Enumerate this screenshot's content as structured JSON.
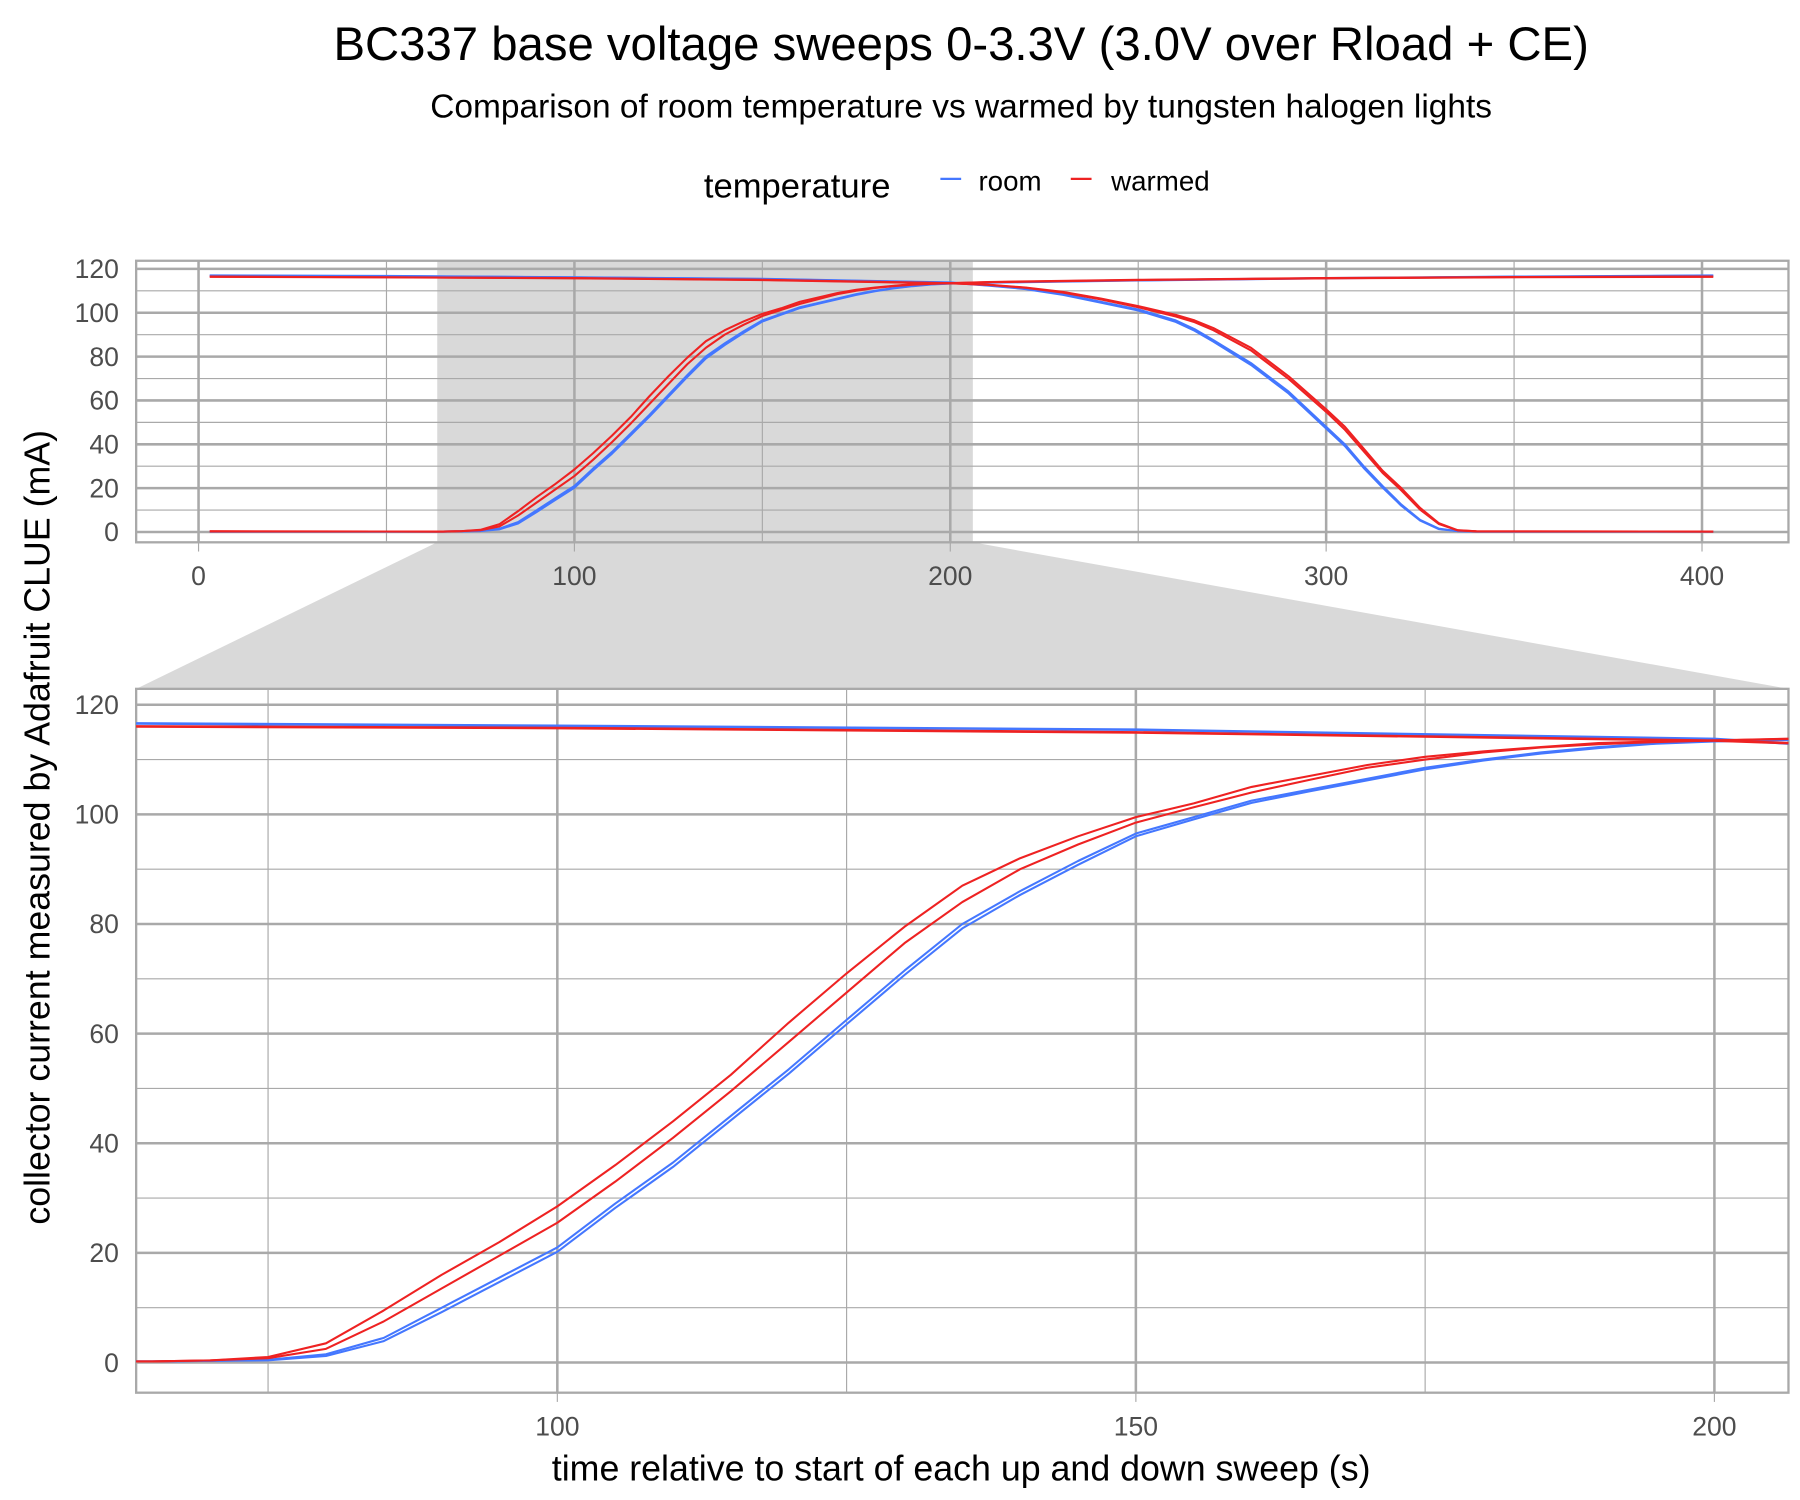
{
  "chart_data": {
    "type": "line",
    "title": "BC337 base voltage sweeps 0-3.3V (3.0V over Rload + CE)",
    "subtitle": "Comparison of room temperature vs warmed by tungsten halogen lights",
    "xlabel": "time relative to start of each up and down sweep (s)",
    "ylabel": "collector current measured by Adafruit CLUE (mA)",
    "legend": {
      "title": "temperature",
      "position": "top",
      "entries": [
        "room",
        "warmed"
      ]
    },
    "colors": {
      "room": "#4477ff",
      "warmed": "#ee2222",
      "zoom_shade": "#d9d9d9",
      "grid": "#a9a9a9"
    },
    "grid": true,
    "panels": [
      {
        "name": "overview",
        "xlim": [
          -16.6,
          423
        ],
        "ylim": [
          -4.7,
          123.7
        ],
        "xticks": [
          0,
          100,
          200,
          300,
          400
        ],
        "yticks": [
          0,
          20,
          40,
          60,
          80,
          100,
          120
        ],
        "zoom_region_x": [
          63.5,
          206
        ]
      },
      {
        "name": "zoomed",
        "xlim": [
          63.6,
          206.4
        ],
        "ylim": [
          -5.5,
          122.9
        ],
        "xticks": [
          100,
          150,
          200
        ],
        "yticks": [
          0,
          20,
          40,
          60,
          80,
          100,
          120
        ]
      }
    ],
    "series": [
      {
        "name": "room",
        "runs": [
          {
            "rising": [
              [
                3,
                0.2
              ],
              [
                65,
                0.2
              ],
              [
                70,
                0.3
              ],
              [
                75,
                0.5
              ],
              [
                80,
                1.5
              ],
              [
                85,
                4.5
              ],
              [
                90,
                10
              ],
              [
                95,
                15.5
              ],
              [
                100,
                21
              ],
              [
                105,
                29
              ],
              [
                110,
                36.5
              ],
              [
                115,
                45
              ],
              [
                120,
                53.5
              ],
              [
                125,
                62.5
              ],
              [
                130,
                71.5
              ],
              [
                135,
                80
              ],
              [
                140,
                86
              ],
              [
                145,
                91.5
              ],
              [
                150,
                96.5
              ],
              [
                155,
                99.5
              ],
              [
                160,
                102.5
              ],
              [
                165,
                104.5
              ],
              [
                170,
                106.5
              ],
              [
                175,
                108.5
              ],
              [
                180,
                110
              ],
              [
                185,
                111.3
              ],
              [
                190,
                112.3
              ],
              [
                195,
                113
              ],
              [
                200,
                113.4
              ],
              [
                210,
                113.8
              ],
              [
                250,
                114.8
              ],
              [
                300,
                115.8
              ],
              [
                350,
                116.5
              ],
              [
                403,
                117
              ]
            ],
            "falling": [
              [
                3,
                117
              ],
              [
                50,
                116.8
              ],
              [
                100,
                116.2
              ],
              [
                150,
                115.5
              ],
              [
                200,
                113.8
              ],
              [
                210,
                112.5
              ],
              [
                220,
                111
              ],
              [
                230,
                108.5
              ],
              [
                240,
                105
              ],
              [
                250,
                101.5
              ],
              [
                260,
                96.5
              ],
              [
                265,
                92.5
              ],
              [
                270,
                87.5
              ],
              [
                280,
                77
              ],
              [
                290,
                64
              ],
              [
                300,
                48
              ],
              [
                305,
                40
              ],
              [
                310,
                30
              ],
              [
                315,
                21
              ],
              [
                320,
                12.5
              ],
              [
                325,
                5.5
              ],
              [
                330,
                1.5
              ],
              [
                335,
                0.4
              ],
              [
                340,
                0.2
              ],
              [
                403,
                0.2
              ]
            ]
          },
          {
            "rising": [
              [
                3,
                0.2
              ],
              [
                65,
                0.2
              ],
              [
                70,
                0.3
              ],
              [
                75,
                0.4
              ],
              [
                80,
                1.2
              ],
              [
                85,
                3.9
              ],
              [
                90,
                9.2
              ],
              [
                95,
                14.7
              ],
              [
                100,
                20.2
              ],
              [
                105,
                28.2
              ],
              [
                110,
                35.7
              ],
              [
                115,
                44.2
              ],
              [
                120,
                52.7
              ],
              [
                125,
                61.7
              ],
              [
                130,
                70.7
              ],
              [
                135,
                79.2
              ],
              [
                140,
                85.3
              ],
              [
                145,
                90.8
              ],
              [
                150,
                96
              ],
              [
                155,
                99.1
              ],
              [
                160,
                102.1
              ],
              [
                165,
                104.2
              ],
              [
                170,
                106.2
              ],
              [
                175,
                108.2
              ],
              [
                180,
                109.8
              ],
              [
                185,
                111.1
              ],
              [
                190,
                112.1
              ],
              [
                195,
                112.9
              ],
              [
                200,
                113.3
              ],
              [
                210,
                113.7
              ],
              [
                250,
                114.7
              ],
              [
                300,
                115.7
              ],
              [
                350,
                116.4
              ],
              [
                403,
                116.9
              ]
            ],
            "falling": [
              [
                3,
                116.9
              ],
              [
                50,
                116.7
              ],
              [
                100,
                116.1
              ],
              [
                150,
                115.4
              ],
              [
                200,
                113.7
              ],
              [
                210,
                112.4
              ],
              [
                220,
                110.8
              ],
              [
                230,
                108.2
              ],
              [
                240,
                104.6
              ],
              [
                250,
                101
              ],
              [
                260,
                95.8
              ],
              [
                265,
                91.8
              ],
              [
                270,
                86.8
              ],
              [
                280,
                76.2
              ],
              [
                290,
                63.2
              ],
              [
                300,
                47.2
              ],
              [
                305,
                39.2
              ],
              [
                310,
                29.2
              ],
              [
                315,
                20.3
              ],
              [
                320,
                12
              ],
              [
                325,
                5.2
              ],
              [
                330,
                1.3
              ],
              [
                335,
                0.4
              ],
              [
                340,
                0.2
              ],
              [
                403,
                0.2
              ]
            ]
          }
        ]
      },
      {
        "name": "warmed",
        "runs": [
          {
            "rising": [
              [
                3,
                0.3
              ],
              [
                65,
                0.2
              ],
              [
                70,
                0.4
              ],
              [
                75,
                1
              ],
              [
                80,
                3.5
              ],
              [
                85,
                9.5
              ],
              [
                90,
                16
              ],
              [
                95,
                22
              ],
              [
                100,
                28.5
              ],
              [
                105,
                36
              ],
              [
                110,
                44
              ],
              [
                115,
                52.5
              ],
              [
                120,
                62
              ],
              [
                125,
                71
              ],
              [
                130,
                79.5
              ],
              [
                135,
                87
              ],
              [
                140,
                92
              ],
              [
                145,
                96
              ],
              [
                150,
                99.5
              ],
              [
                155,
                102
              ],
              [
                160,
                105
              ],
              [
                165,
                107
              ],
              [
                170,
                109
              ],
              [
                175,
                110.5
              ],
              [
                180,
                111.5
              ],
              [
                185,
                112.3
              ],
              [
                190,
                113
              ],
              [
                195,
                113.3
              ],
              [
                200,
                113.5
              ],
              [
                210,
                114
              ],
              [
                250,
                115
              ],
              [
                300,
                115.8
              ],
              [
                350,
                116.3
              ],
              [
                403,
                116.5
              ]
            ],
            "falling": [
              [
                3,
                116.5
              ],
              [
                50,
                116.2
              ],
              [
                100,
                115.8
              ],
              [
                150,
                115
              ],
              [
                200,
                113.5
              ],
              [
                210,
                112.8
              ],
              [
                220,
                111.5
              ],
              [
                230,
                109.5
              ],
              [
                240,
                106.5
              ],
              [
                250,
                103
              ],
              [
                260,
                99
              ],
              [
                265,
                96.5
              ],
              [
                270,
                93
              ],
              [
                280,
                84
              ],
              [
                290,
                71
              ],
              [
                300,
                56
              ],
              [
                305,
                48
              ],
              [
                310,
                38
              ],
              [
                315,
                28
              ],
              [
                320,
                20
              ],
              [
                325,
                11
              ],
              [
                330,
                4
              ],
              [
                335,
                0.8
              ],
              [
                340,
                0.3
              ],
              [
                403,
                0.2
              ]
            ]
          },
          {
            "rising": [
              [
                3,
                0.3
              ],
              [
                65,
                0.2
              ],
              [
                70,
                0.4
              ],
              [
                75,
                0.8
              ],
              [
                80,
                2.5
              ],
              [
                85,
                7.5
              ],
              [
                90,
                13.5
              ],
              [
                95,
                19.5
              ],
              [
                100,
                25.5
              ],
              [
                105,
                33
              ],
              [
                110,
                41
              ],
              [
                115,
                49.5
              ],
              [
                120,
                58.5
              ],
              [
                125,
                67.5
              ],
              [
                130,
                76.5
              ],
              [
                135,
                84
              ],
              [
                140,
                90
              ],
              [
                145,
                94.5
              ],
              [
                150,
                98.5
              ],
              [
                155,
                101.3
              ],
              [
                160,
                104
              ],
              [
                165,
                106.3
              ],
              [
                170,
                108.5
              ],
              [
                175,
                110
              ],
              [
                180,
                111.3
              ],
              [
                185,
                112.2
              ],
              [
                190,
                112.8
              ],
              [
                195,
                113.2
              ],
              [
                200,
                113.5
              ],
              [
                210,
                113.9
              ],
              [
                250,
                114.9
              ],
              [
                300,
                115.7
              ],
              [
                350,
                116.2
              ],
              [
                403,
                116.4
              ]
            ],
            "falling": [
              [
                3,
                116.4
              ],
              [
                50,
                116.1
              ],
              [
                100,
                115.7
              ],
              [
                150,
                114.9
              ],
              [
                200,
                113.4
              ],
              [
                210,
                112.7
              ],
              [
                220,
                111.4
              ],
              [
                230,
                109.2
              ],
              [
                240,
                106.1
              ],
              [
                250,
                102.5
              ],
              [
                260,
                98.3
              ],
              [
                265,
                95.7
              ],
              [
                270,
                92
              ],
              [
                280,
                82.8
              ],
              [
                290,
                69.8
              ],
              [
                300,
                54.8
              ],
              [
                305,
                46.6
              ],
              [
                310,
                36.8
              ],
              [
                315,
                27
              ],
              [
                320,
                19
              ],
              [
                325,
                10.2
              ],
              [
                330,
                3.6
              ],
              [
                335,
                0.7
              ],
              [
                340,
                0.3
              ],
              [
                403,
                0.2
              ]
            ]
          }
        ]
      }
    ]
  }
}
